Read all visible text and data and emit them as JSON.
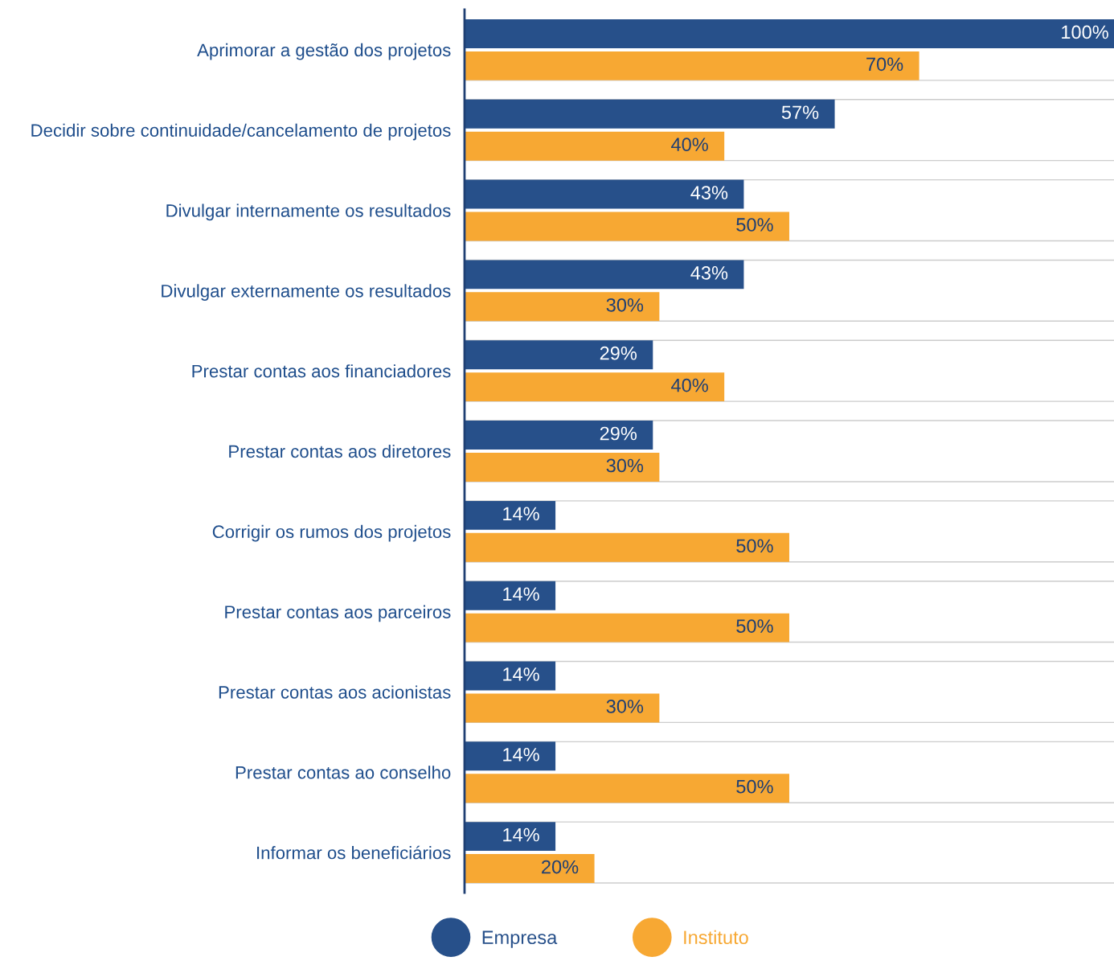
{
  "chart_data": {
    "type": "bar",
    "orientation": "horizontal",
    "categories": [
      "Aprimorar a gestão dos projetos",
      "Decidir sobre continuidade/cancelamento de projetos",
      "Divulgar internamente os resultados",
      "Divulgar externamente os resultados",
      "Prestar contas aos financiadores",
      "Prestar contas aos diretores",
      "Corrigir os rumos dos projetos",
      "Prestar contas aos parceiros",
      "Prestar contas aos acionistas",
      "Prestar contas ao conselho",
      "Informar os beneficiários"
    ],
    "series": [
      {
        "name": "Empresa",
        "color": "#27508a",
        "values": [
          100,
          57,
          43,
          43,
          29,
          29,
          14,
          14,
          14,
          14,
          14
        ],
        "value_labels": [
          "100%",
          "57%",
          "43%",
          "43%",
          "29%",
          "29%",
          "14%",
          "14%",
          "14%",
          "14%",
          "14%"
        ]
      },
      {
        "name": "Instituto",
        "color": "#f7a833",
        "values": [
          70,
          40,
          50,
          30,
          40,
          30,
          50,
          50,
          30,
          50,
          20
        ],
        "value_labels": [
          "70%",
          "40%",
          "50%",
          "30%",
          "40%",
          "30%",
          "50%",
          "50%",
          "30%",
          "50%",
          "20%"
        ]
      }
    ],
    "grid": "y",
    "legend": "bottom"
  }
}
